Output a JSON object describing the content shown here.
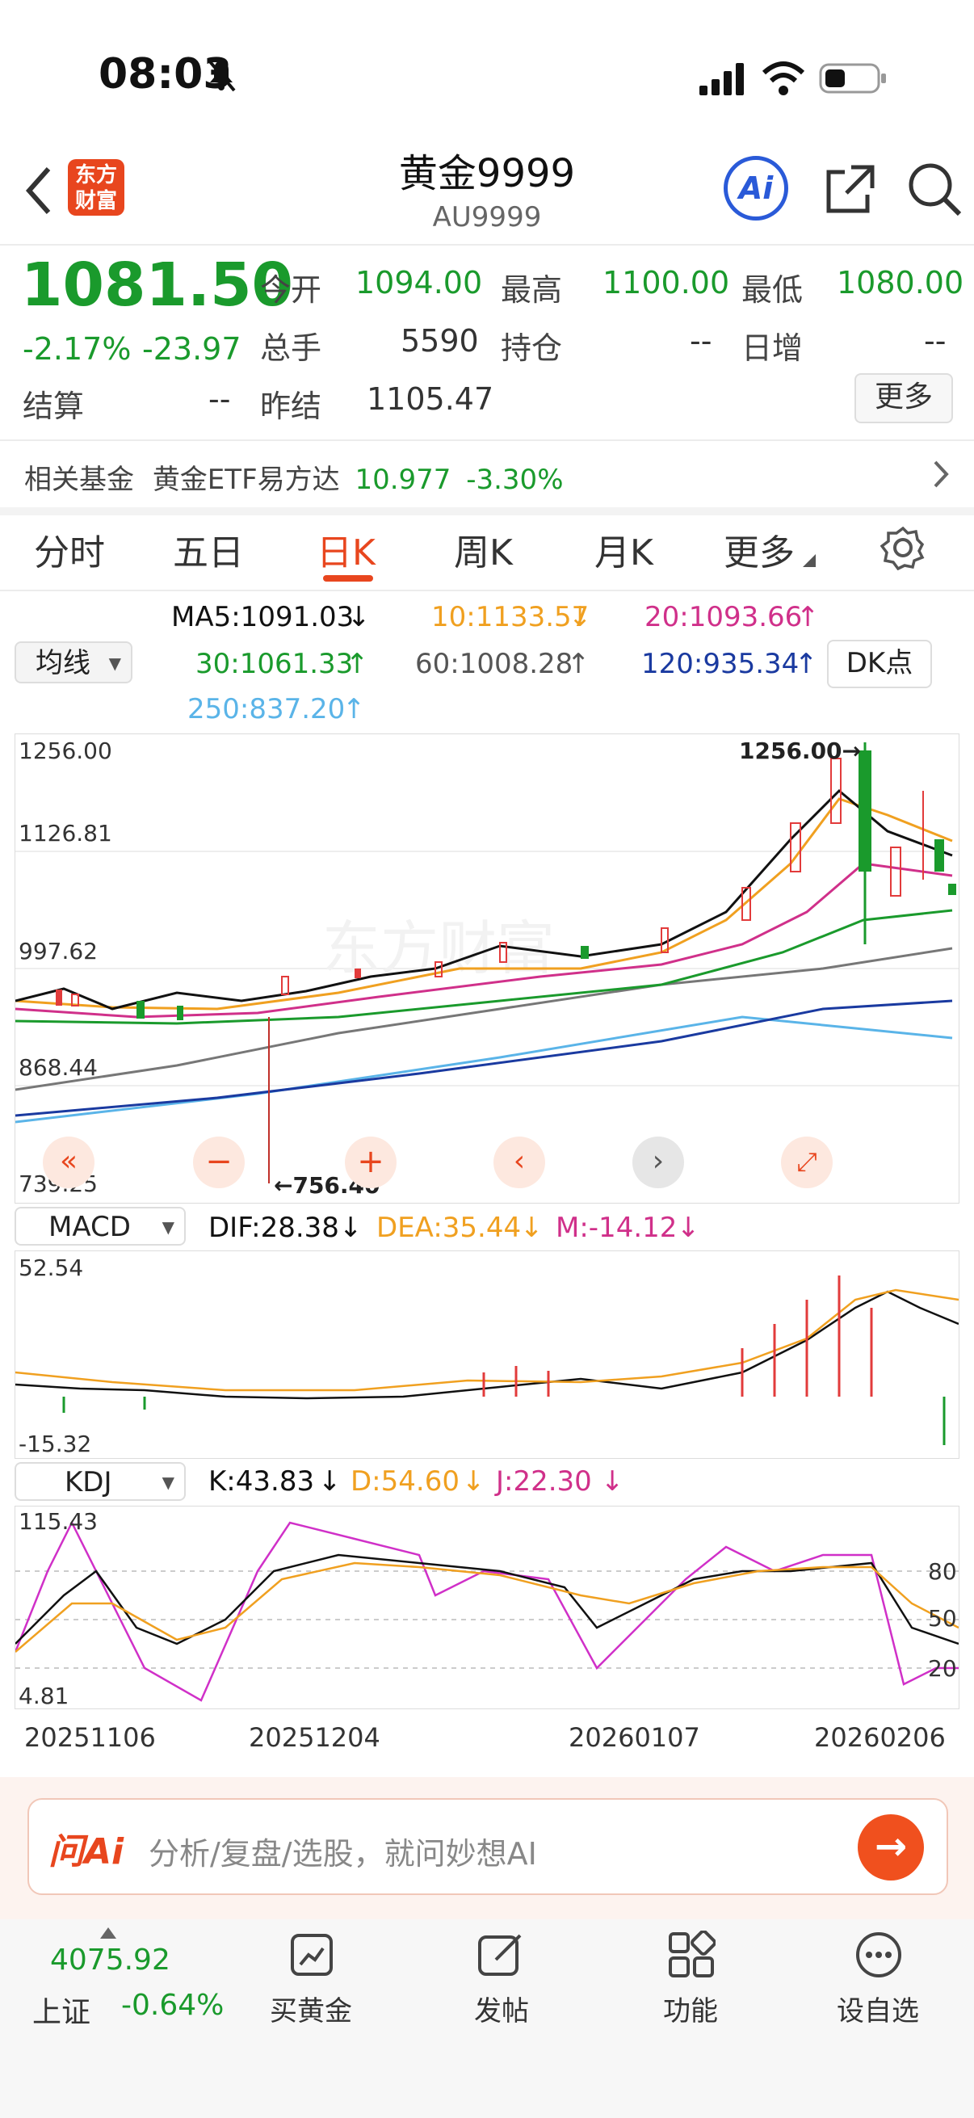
{
  "status": {
    "time": "08:03"
  },
  "header": {
    "title": "黄金9999",
    "code": "AU9999",
    "logo_text_1": "东方",
    "logo_text_2": "财富",
    "ai_label": "Ai"
  },
  "quote": {
    "price": "1081.50",
    "change_pct": "-2.17%",
    "change": "-23.97",
    "fields": [
      {
        "label": "今开",
        "value": "1094.00"
      },
      {
        "label": "最高",
        "value": "1100.00"
      },
      {
        "label": "最低",
        "value": "1080.00"
      },
      {
        "label": "总手",
        "value": "5590"
      },
      {
        "label": "持仓",
        "value": "--"
      },
      {
        "label": "日增",
        "value": "--"
      },
      {
        "label": "结算",
        "value": "--"
      },
      {
        "label": "昨结",
        "value": "1105.47"
      }
    ],
    "more_button": "更多"
  },
  "fund": {
    "label": "相关基金",
    "name": "黄金ETF易方达",
    "price": "10.977",
    "change": "-3.30%"
  },
  "tabs": [
    "分时",
    "五日",
    "日K",
    "周K",
    "月K",
    "更多"
  ],
  "active_tab": "日K",
  "ma": {
    "selector": "均线",
    "ma5": "MA5:1091.03",
    "ma10": "10:1133.57",
    "ma20": "20:1093.66",
    "ma30": "30:1061.33",
    "ma60": "60:1008.28",
    "ma120": "120:935.34",
    "ma250": "250:837.20",
    "dk_button": "DK点",
    "colors": {
      "ma5": "#111111",
      "ma10": "#f0a020",
      "ma20": "#d0308a",
      "ma30": "#1a9a2c",
      "ma60": "#777777",
      "ma120": "#1a3aa0",
      "ma250": "#5ab4e8"
    }
  },
  "kline": {
    "y_labels": [
      "1256.00",
      "1126.81",
      "997.62",
      "868.44",
      "739.25"
    ],
    "high_marker": "1256.00→",
    "low_marker": "←756.40",
    "watermark": "东方财富"
  },
  "macd": {
    "selector": "MACD",
    "dif": "DIF:28.38",
    "dea": "DEA:35.44",
    "m": "M:-14.12",
    "y_top": "52.54",
    "y_bottom": "-15.32"
  },
  "kdj": {
    "selector": "KDJ",
    "k": "K:43.83",
    "d": "D:54.60",
    "j": "J:22.30",
    "y_top": "115.43",
    "y_bottom": "4.81",
    "levels": [
      "80",
      "50",
      "20"
    ]
  },
  "dates": [
    "20251106",
    "20251204",
    "20260107",
    "20260206"
  ],
  "ai_bar": {
    "brand": "问Ai",
    "placeholder": "分析/复盘/选股，就问妙想AI"
  },
  "bottom_nav": {
    "index_value": "4075.92",
    "index_name": "上证",
    "index_change": "-0.64%",
    "items": [
      "买黄金",
      "发帖",
      "功能",
      "设自选"
    ]
  }
}
